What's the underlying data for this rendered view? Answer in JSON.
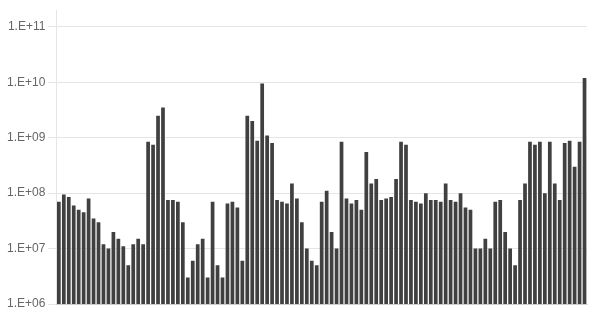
{
  "chart_data": {
    "type": "bar",
    "categories": [
      null,
      null,
      null,
      null,
      null,
      null,
      null,
      null,
      null,
      null,
      null,
      null,
      null,
      null,
      null,
      null,
      null,
      null,
      null,
      null,
      null,
      null,
      null,
      null,
      null,
      null,
      null,
      null,
      null,
      null,
      null,
      null,
      null,
      null,
      null,
      null,
      null,
      null,
      null,
      null,
      null,
      null,
      null,
      null,
      null,
      null,
      null,
      null,
      null,
      null,
      null,
      null,
      null,
      null,
      null,
      null,
      null,
      null,
      null,
      null,
      null,
      null,
      null,
      null,
      null,
      null,
      null,
      null,
      null,
      null,
      null,
      null,
      null,
      null,
      null,
      null,
      null,
      null,
      null,
      null,
      null,
      null,
      null,
      null,
      null,
      null,
      null,
      null,
      null,
      null,
      null,
      null,
      null,
      null,
      null,
      null,
      null,
      null,
      null,
      null,
      null,
      null,
      null,
      null,
      null,
      null,
      null
    ],
    "values": [
      70000000.0,
      95000000.0,
      85000000.0,
      60000000.0,
      50000000.0,
      45000000.0,
      80000000.0,
      35000000.0,
      30000000.0,
      12000000.0,
      10000000.0,
      20000000.0,
      15000000.0,
      11000000.0,
      5000000.0,
      12000000.0,
      15000000.0,
      12000000.0,
      850000000.0,
      750000000.0,
      2500000000.0,
      3500000000.0,
      75000000.0,
      75000000.0,
      70000000.0,
      30000000.0,
      3000000.0,
      6000000.0,
      12000000.0,
      15000000.0,
      3000000.0,
      70000000.0,
      5000000.0,
      3000000.0,
      65000000.0,
      70000000.0,
      55000000.0,
      6000000.0,
      2500000000.0,
      2000000000.0,
      880000000.0,
      9500000000.0,
      1100000000.0,
      800000000.0,
      75000000.0,
      70000000.0,
      65000000.0,
      150000000.0,
      80000000.0,
      30000000.0,
      10000000.0,
      6000000.0,
      5000000.0,
      70000000.0,
      110000000.0,
      20000000.0,
      10000000.0,
      850000000.0,
      80000000.0,
      65000000.0,
      75000000.0,
      50000000.0,
      550000000.0,
      150000000.0,
      180000000.0,
      75000000.0,
      80000000.0,
      85000000.0,
      180000000.0,
      850000000.0,
      750000000.0,
      75000000.0,
      70000000.0,
      65000000.0,
      100000000.0,
      75000000.0,
      75000000.0,
      70000000.0,
      150000000.0,
      75000000.0,
      70000000.0,
      100000000.0,
      55000000.0,
      50000000.0,
      10000000.0,
      10000000.0,
      15000000.0,
      10000000.0,
      70000000.0,
      75000000.0,
      20000000.0,
      10000000.0,
      5000000.0,
      75000000.0,
      150000000.0,
      850000000.0,
      750000000.0,
      850000000.0,
      100000000.0,
      850000000.0,
      150000000.0,
      75000000.0,
      800000000.0,
      880000000.0,
      300000000.0,
      850000000.0,
      12000000000.0
    ],
    "color": "#404040",
    "log": "y",
    "ylim": [
      1000000.0,
      200000000000.0
    ],
    "yticks": [
      {
        "value": 1000000.0,
        "label": "1.E+06"
      },
      {
        "value": 10000000.0,
        "label": "1.E+07"
      },
      {
        "value": 100000000.0,
        "label": "1.E+08"
      },
      {
        "value": 1000000000.0,
        "label": "1.E+09"
      },
      {
        "value": 10000000000.0,
        "label": "1.E+10"
      },
      {
        "value": 100000000000.0,
        "label": "1.E+11"
      }
    ],
    "grid": true,
    "tick_labels": "y"
  }
}
